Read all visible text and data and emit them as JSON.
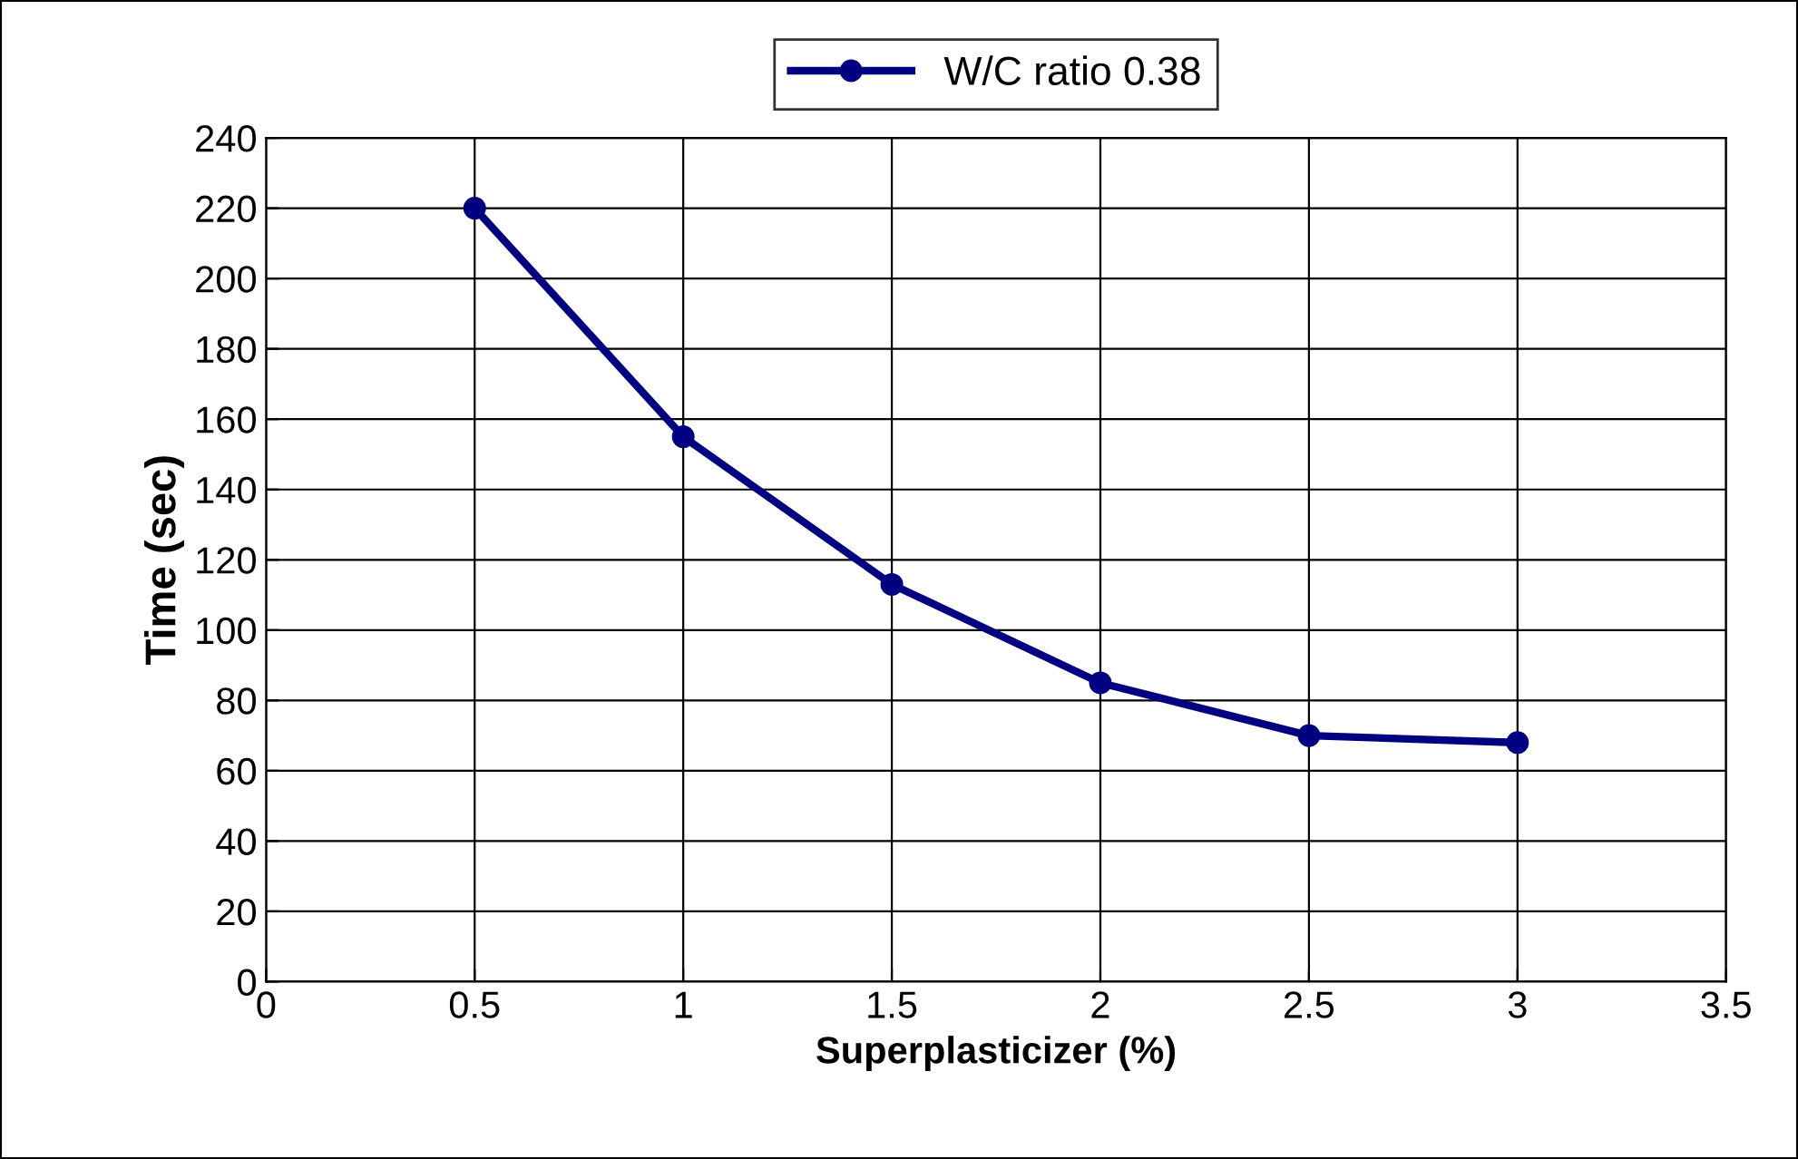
{
  "chart_data": {
    "type": "line",
    "xlabel": "Superplasticizer (%)",
    "ylabel": "Time (sec)",
    "x": [
      0.5,
      1,
      1.5,
      2,
      2.5,
      3
    ],
    "series": [
      {
        "name": "W/C ratio 0.38",
        "color": "#000080",
        "values": [
          220,
          155,
          113,
          85,
          70,
          68
        ]
      }
    ],
    "xlim": [
      0,
      3.5
    ],
    "xticks": [
      0,
      0.5,
      1,
      1.5,
      2,
      2.5,
      3,
      3.5
    ],
    "ylim": [
      0,
      240
    ],
    "yticks": [
      0,
      20,
      40,
      60,
      80,
      100,
      120,
      140,
      160,
      180,
      200,
      220,
      240
    ],
    "grid": true,
    "legend": "top",
    "marker": "circle",
    "line_style": "solid"
  }
}
